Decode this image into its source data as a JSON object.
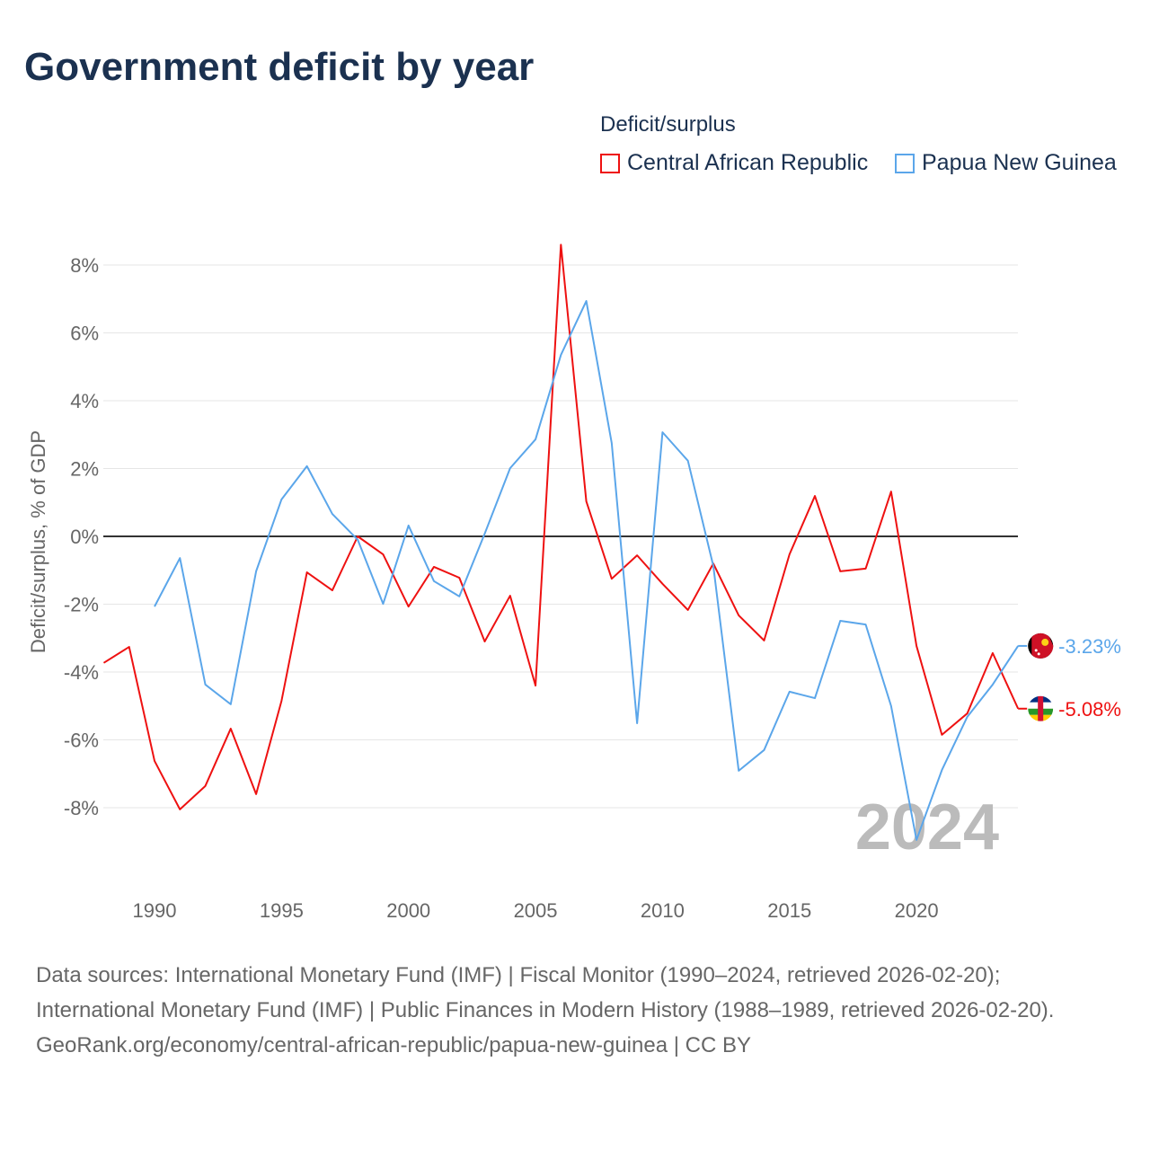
{
  "title": "Government deficit by year",
  "legend": {
    "title": "Deficit/surplus",
    "items": [
      {
        "label": "Central African Republic",
        "color": "#ee1111"
      },
      {
        "label": "Papua New Guinea",
        "color": "#5ba6ea"
      }
    ]
  },
  "chart_data": {
    "type": "line",
    "title": "Government deficit by year",
    "ylabel": "Deficit/surplus, % of GDP",
    "xlabel": "",
    "ylim": [
      -10,
      9
    ],
    "xlim": [
      1988,
      2024
    ],
    "yticks": [
      8,
      6,
      4,
      2,
      0,
      -2,
      -4,
      -6,
      -8
    ],
    "ytick_labels": [
      "8%",
      "6%",
      "4%",
      "2%",
      "0%",
      "-2%",
      "-4%",
      "-6%",
      "-8%"
    ],
    "xticks": [
      1990,
      1995,
      2000,
      2005,
      2010,
      2015,
      2020
    ],
    "xtick_labels": [
      "1990",
      "1995",
      "2000",
      "2005",
      "2010",
      "2015",
      "2020"
    ],
    "grid": true,
    "year_watermark": "2024",
    "series": [
      {
        "name": "Central African Republic",
        "color": "#ee1111",
        "end_label": "-5.08%",
        "x": [
          1988,
          1989,
          1990,
          1991,
          1992,
          1993,
          1994,
          1995,
          1996,
          1997,
          1998,
          1999,
          2000,
          2001,
          2002,
          2003,
          2004,
          2005,
          2006,
          2007,
          2008,
          2009,
          2010,
          2011,
          2012,
          2013,
          2014,
          2015,
          2016,
          2017,
          2018,
          2019,
          2020,
          2021,
          2022,
          2023,
          2024
        ],
        "values": [
          -3.73,
          -3.26,
          -6.62,
          -8.05,
          -7.36,
          -5.67,
          -7.6,
          -4.85,
          -1.06,
          -1.59,
          0.0,
          -0.53,
          -2.07,
          -0.9,
          -1.22,
          -3.1,
          -1.75,
          -4.4,
          8.6,
          1.03,
          -1.25,
          -0.56,
          -1.4,
          -2.17,
          -0.8,
          -2.33,
          -3.07,
          -0.53,
          1.19,
          -1.03,
          -0.95,
          1.32,
          -3.23,
          -5.85,
          -5.22,
          -3.44,
          -5.08
        ]
      },
      {
        "name": "Papua New Guinea",
        "color": "#5ba6ea",
        "end_label": "-3.23%",
        "x": [
          1990,
          1991,
          1992,
          1993,
          1994,
          1995,
          1996,
          1997,
          1998,
          1999,
          2000,
          2001,
          2002,
          2003,
          2004,
          2005,
          2006,
          2007,
          2008,
          2009,
          2010,
          2011,
          2012,
          2013,
          2014,
          2015,
          2016,
          2017,
          2018,
          2019,
          2020,
          2021,
          2022,
          2023,
          2024
        ],
        "values": [
          -2.07,
          -0.64,
          -4.37,
          -4.95,
          -1.03,
          1.09,
          2.07,
          0.66,
          -0.1,
          -1.99,
          0.32,
          -1.32,
          -1.77,
          0.08,
          2.01,
          2.86,
          5.35,
          6.94,
          2.75,
          -5.51,
          3.07,
          2.23,
          -0.87,
          -6.91,
          -6.3,
          -4.58,
          -4.77,
          -2.49,
          -2.6,
          -5.0,
          -8.95,
          -6.89,
          -5.32,
          -4.37,
          -3.23
        ]
      }
    ]
  },
  "footer": {
    "sources": "Data sources: International Monetary Fund (IMF) | Fiscal Monitor (1990–2024, retrieved 2026-02-20); International Monetary Fund (IMF) | Public Finances in Modern History (1988–1989, retrieved 2026-02-20).",
    "link": "GeoRank.org/economy/central-african-republic/papua-new-guinea | CC BY"
  }
}
